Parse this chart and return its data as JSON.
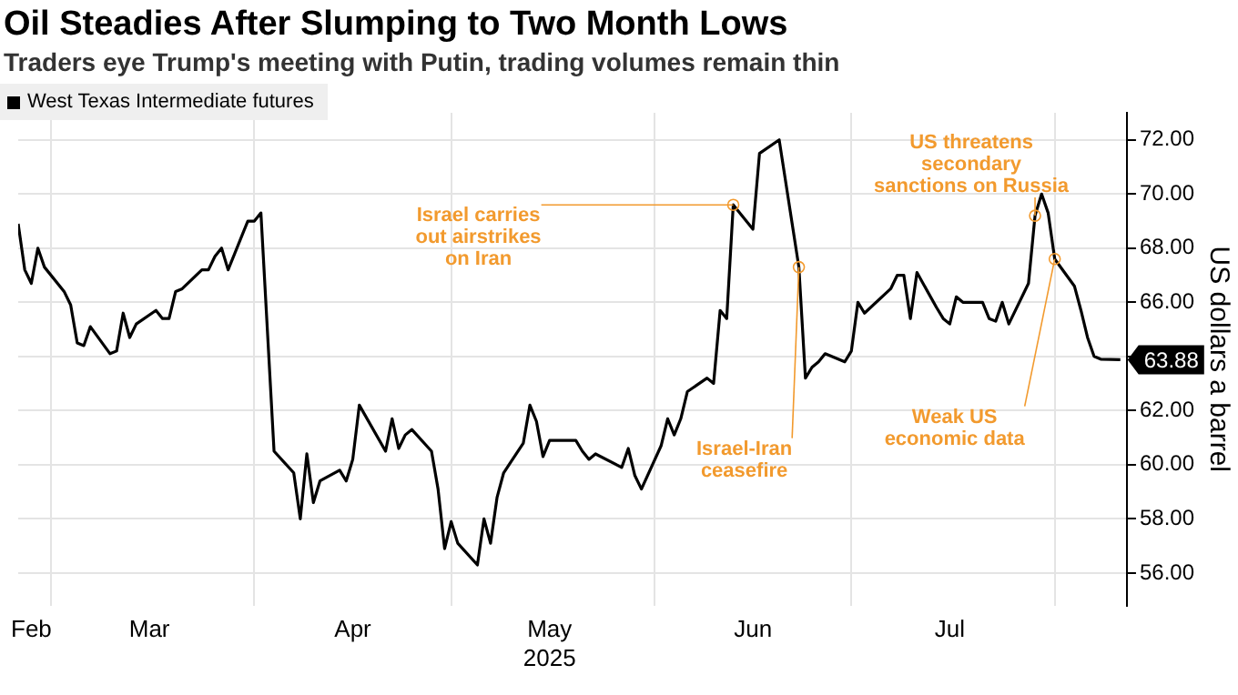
{
  "chart_data": {
    "type": "line",
    "title": "Oil Steadies After Slumping to Two Month Lows",
    "subtitle": "Traders eye Trump's meeting with Putin, trading volumes remain thin",
    "ylabel": "US dollars a barrel",
    "x": [
      "2025-02-24",
      "2025-02-25",
      "2025-02-26",
      "2025-02-27",
      "2025-02-28",
      "2025-03-03",
      "2025-03-04",
      "2025-03-05",
      "2025-03-06",
      "2025-03-07",
      "2025-03-10",
      "2025-03-11",
      "2025-03-12",
      "2025-03-13",
      "2025-03-14",
      "2025-03-17",
      "2025-03-18",
      "2025-03-19",
      "2025-03-20",
      "2025-03-21",
      "2025-03-24",
      "2025-03-25",
      "2025-03-26",
      "2025-03-27",
      "2025-03-28",
      "2025-03-31",
      "2025-04-01",
      "2025-04-02",
      "2025-04-04",
      "2025-04-07",
      "2025-04-08",
      "2025-04-09",
      "2025-04-10",
      "2025-04-11",
      "2025-04-14",
      "2025-04-15",
      "2025-04-16",
      "2025-04-17",
      "2025-04-21",
      "2025-04-22",
      "2025-04-23",
      "2025-04-24",
      "2025-04-25",
      "2025-04-28",
      "2025-04-29",
      "2025-04-30",
      "2025-05-01",
      "2025-05-02",
      "2025-05-05",
      "2025-05-06",
      "2025-05-07",
      "2025-05-08",
      "2025-05-09",
      "2025-05-12",
      "2025-05-13",
      "2025-05-14",
      "2025-05-15",
      "2025-05-16",
      "2025-05-19",
      "2025-05-20",
      "2025-05-21",
      "2025-05-22",
      "2025-05-23",
      "2025-05-27",
      "2025-05-28",
      "2025-05-29",
      "2025-05-30",
      "2025-06-02",
      "2025-06-03",
      "2025-06-04",
      "2025-06-05",
      "2025-06-06",
      "2025-06-09",
      "2025-06-10",
      "2025-06-11",
      "2025-06-12",
      "2025-06-13",
      "2025-06-16",
      "2025-06-17",
      "2025-06-20",
      "2025-06-23",
      "2025-06-24",
      "2025-06-25",
      "2025-06-26",
      "2025-06-27",
      "2025-06-30",
      "2025-07-01",
      "2025-07-02",
      "2025-07-03",
      "2025-07-07",
      "2025-07-08",
      "2025-07-09",
      "2025-07-10",
      "2025-07-11",
      "2025-07-14",
      "2025-07-15",
      "2025-07-16",
      "2025-07-17",
      "2025-07-18",
      "2025-07-21",
      "2025-07-22",
      "2025-07-23",
      "2025-07-24",
      "2025-07-25",
      "2025-07-28",
      "2025-07-29",
      "2025-07-30",
      "2025-07-31",
      "2025-08-01",
      "2025-08-04",
      "2025-08-05",
      "2025-08-06",
      "2025-08-07",
      "2025-08-08",
      "2025-08-11"
    ],
    "series": [
      {
        "name": "West Texas Intermediate futures",
        "color": "#000000",
        "values": [
          68.9,
          67.2,
          66.7,
          68.0,
          67.3,
          66.4,
          65.9,
          64.5,
          64.4,
          65.1,
          64.1,
          64.2,
          65.6,
          64.7,
          65.2,
          65.7,
          65.4,
          65.4,
          66.4,
          66.5,
          67.2,
          67.2,
          67.7,
          68.0,
          67.2,
          69.0,
          69.0,
          69.3,
          60.5,
          59.7,
          58.0,
          60.4,
          58.6,
          59.4,
          59.8,
          59.4,
          60.2,
          62.2,
          60.5,
          61.7,
          60.6,
          61.1,
          61.3,
          60.5,
          59.1,
          56.9,
          57.9,
          57.1,
          56.3,
          58.0,
          57.1,
          58.8,
          59.7,
          60.8,
          62.2,
          61.6,
          60.3,
          60.9,
          60.9,
          60.9,
          60.5,
          60.2,
          60.4,
          59.9,
          60.6,
          59.6,
          59.1,
          60.7,
          61.7,
          61.1,
          61.7,
          62.7,
          63.2,
          63.0,
          65.7,
          65.4,
          69.6,
          68.7,
          71.5,
          72.0,
          67.3,
          63.2,
          63.6,
          63.8,
          64.1,
          63.8,
          64.2,
          66.0,
          65.6,
          66.5,
          67.0,
          67.0,
          65.4,
          67.1,
          65.8,
          65.4,
          65.2,
          66.2,
          66.0,
          66.0,
          65.4,
          65.3,
          66.0,
          65.2,
          66.7,
          69.2,
          70.0,
          69.3,
          67.6,
          66.6,
          65.7,
          64.7,
          64.0,
          63.9,
          63.88
        ],
        "value_labels": [
          null,
          null,
          null,
          null,
          null,
          null,
          null,
          null,
          null,
          null,
          null,
          null,
          null,
          null,
          null,
          null,
          null,
          null,
          null,
          null,
          null,
          null,
          null,
          null,
          null,
          null,
          null,
          null,
          null,
          null,
          null,
          null,
          null,
          null,
          null,
          null,
          null,
          null,
          null,
          null,
          null,
          null,
          null,
          null,
          null,
          null,
          null,
          null,
          null,
          null,
          null,
          null,
          null,
          null,
          null,
          null,
          null,
          null,
          null,
          null,
          null,
          null,
          null,
          null,
          null,
          null,
          null,
          null,
          null,
          null,
          null,
          null,
          null,
          null,
          null,
          null,
          null,
          null,
          null,
          null,
          null,
          null,
          null,
          null,
          null,
          null,
          null,
          null,
          null,
          null,
          null,
          null,
          null,
          null,
          null,
          null,
          null,
          null,
          null,
          null,
          null,
          null,
          null,
          null,
          null,
          null,
          null,
          null,
          null,
          null,
          null,
          null,
          null,
          null,
          "63.88"
        ]
      }
    ],
    "xlim": [
      "2025-02-24",
      "2025-08-12"
    ],
    "xticks": [
      {
        "value": "2025-02-26",
        "label": "Feb"
      },
      {
        "value": "2025-03-01",
        "label": null
      },
      {
        "value": "2025-03-16",
        "label": "Mar"
      },
      {
        "value": "2025-04-01",
        "label": null
      },
      {
        "value": "2025-04-16",
        "label": "Apr"
      },
      {
        "value": "2025-05-01",
        "label": null
      },
      {
        "value": "2025-05-16",
        "label": "May\n2025"
      },
      {
        "value": "2025-06-01",
        "label": null
      },
      {
        "value": "2025-06-16",
        "label": "Jun"
      },
      {
        "value": "2025-07-01",
        "label": null
      },
      {
        "value": "2025-07-16",
        "label": "Jul"
      },
      {
        "value": "2025-08-01",
        "label": null
      }
    ],
    "ylim": [
      54.8,
      73
    ],
    "yticks": [
      {
        "value": 56,
        "label": "56.00"
      },
      {
        "value": 58,
        "label": "58.00"
      },
      {
        "value": 60,
        "label": "60.00"
      },
      {
        "value": 62,
        "label": "62.00"
      },
      {
        "value": 64,
        "label": null
      },
      {
        "value": 66,
        "label": "66.00"
      },
      {
        "value": 68,
        "label": "68.00"
      },
      {
        "value": 70,
        "label": "70.00"
      },
      {
        "value": 72,
        "label": "72.00"
      }
    ],
    "annotations": [
      {
        "text": "Israel carries\nout airstrikes\non Iran",
        "x": "2025-06-13",
        "y": 69.6
      },
      {
        "text": "Israel-Iran\nceasefire",
        "x": "2025-06-23",
        "y": 67.3
      },
      {
        "text": "US threatens\nsecondary\nsanctions on Russia",
        "x": "2025-07-29",
        "y": 69.2
      },
      {
        "text": "Weak US\neconomic data",
        "x": "2025-08-01",
        "y": 67.6
      }
    ],
    "grid": true,
    "legend": "top left",
    "marker": "none",
    "line_style": "solid"
  }
}
